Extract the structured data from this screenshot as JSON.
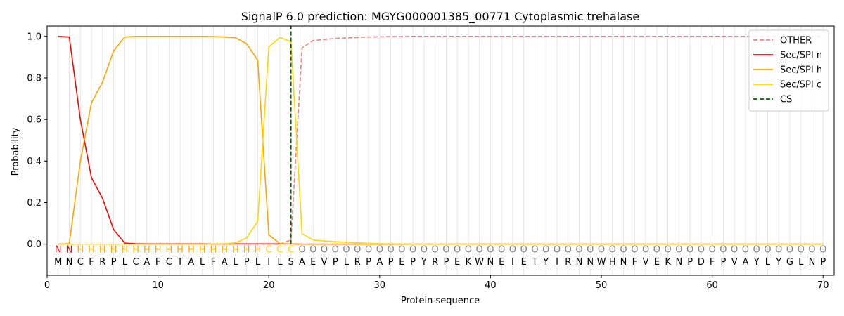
{
  "chart_data": {
    "type": "line",
    "title": "SignalP 6.0 prediction: MGYG000001385_00771 Cytoplasmic trehalase",
    "xlabel": "Protein sequence",
    "ylabel": "Probability",
    "xlim": [
      0,
      71
    ],
    "ylim": [
      -0.15,
      1.05
    ],
    "xticks": [
      0,
      10,
      20,
      30,
      40,
      50,
      60,
      70
    ],
    "yticks": [
      0.0,
      0.2,
      0.4,
      0.6,
      0.8,
      1.0
    ],
    "ytick_labels": [
      "0.0",
      "0.2",
      "0.4",
      "0.6",
      "0.8",
      "1.0"
    ],
    "legend_position": "top-right",
    "grid": "vertical lines at each residue",
    "positions_from": 1,
    "sequence": [
      "M",
      "N",
      "C",
      "F",
      "R",
      "P",
      "L",
      "C",
      "A",
      "F",
      "C",
      "T",
      "A",
      "L",
      "F",
      "A",
      "L",
      "P",
      "L",
      "I",
      "L",
      "S",
      "A",
      "E",
      "V",
      "P",
      "L",
      "R",
      "P",
      "A",
      "P",
      "E",
      "P",
      "Y",
      "R",
      "P",
      "E",
      "K",
      "W",
      "N",
      "E",
      "I",
      "E",
      "T",
      "Y",
      "I",
      "R",
      "N",
      "N",
      "W",
      "H",
      "N",
      "F",
      "V",
      "E",
      "K",
      "N",
      "P",
      "D",
      "F",
      "P",
      "V",
      "A",
      "Y",
      "L",
      "Y",
      "G",
      "L",
      "N",
      "P"
    ],
    "labels": [
      "N",
      "N",
      "H",
      "H",
      "H",
      "H",
      "H",
      "H",
      "H",
      "H",
      "H",
      "H",
      "H",
      "H",
      "H",
      "H",
      "H",
      "H",
      "H",
      "C",
      "C",
      "C",
      "O",
      "O",
      "O",
      "O",
      "O",
      "O",
      "O",
      "O",
      "O",
      "O",
      "O",
      "O",
      "O",
      "O",
      "O",
      "O",
      "O",
      "O",
      "O",
      "O",
      "O",
      "O",
      "O",
      "O",
      "O",
      "O",
      "O",
      "O",
      "O",
      "O",
      "O",
      "O",
      "O",
      "O",
      "O",
      "O",
      "O",
      "O",
      "O",
      "O",
      "O",
      "O",
      "O",
      "O",
      "O",
      "O",
      "O",
      "O"
    ],
    "label_colors": {
      "N": "#ff0000",
      "H": "#ffa500",
      "C": "#ffd700",
      "O": "#808080"
    },
    "series": [
      {
        "name": "OTHER",
        "color": "#f08080",
        "dash": "dashed",
        "values": [
          0,
          0,
          0,
          0,
          0,
          0,
          0,
          0,
          0,
          0,
          0,
          0,
          0,
          0,
          0,
          0,
          0,
          0,
          0,
          0,
          0,
          0.02,
          0.945,
          0.98,
          0.985,
          0.99,
          0.993,
          0.995,
          0.997,
          0.998,
          0.999,
          0.999,
          1,
          1,
          1,
          1,
          1,
          1,
          1,
          1,
          1,
          1,
          1,
          1,
          1,
          1,
          1,
          1,
          1,
          1,
          1,
          1,
          1,
          1,
          1,
          1,
          1,
          1,
          1,
          1,
          1,
          1,
          1,
          1,
          1,
          1,
          1,
          1,
          1,
          1
        ]
      },
      {
        "name": "Sec/SPI n",
        "color": "#ff0000",
        "dash": "solid",
        "values": [
          1.0,
          0.997,
          0.6,
          0.32,
          0.22,
          0.07,
          0.005,
          0.002,
          0.001,
          0.001,
          0.001,
          0.001,
          0.001,
          0.001,
          0.001,
          0.001,
          0.001,
          0.001,
          0.001,
          0.001,
          0.001,
          0.001,
          0,
          0,
          0,
          0,
          0,
          0,
          0,
          0,
          0,
          0,
          0,
          0,
          0,
          0,
          0,
          0,
          0,
          0,
          0,
          0,
          0,
          0,
          0,
          0,
          0,
          0,
          0,
          0,
          0,
          0,
          0,
          0,
          0,
          0,
          0,
          0,
          0,
          0,
          0,
          0,
          0,
          0,
          0,
          0,
          0,
          0,
          0,
          0
        ]
      },
      {
        "name": "Sec/SPI h",
        "color": "#ffa500",
        "dash": "solid",
        "values": [
          0,
          0.003,
          0.4,
          0.68,
          0.78,
          0.93,
          0.997,
          1.0,
          1.0,
          1.0,
          1.0,
          1.0,
          1.0,
          1.0,
          0.999,
          0.997,
          0.993,
          0.965,
          0.885,
          0.045,
          0.003,
          0.001,
          0,
          0,
          0,
          0,
          0,
          0,
          0,
          0,
          0,
          0,
          0,
          0,
          0,
          0,
          0,
          0,
          0,
          0,
          0,
          0,
          0,
          0,
          0,
          0,
          0,
          0,
          0,
          0,
          0,
          0,
          0,
          0,
          0,
          0,
          0,
          0,
          0,
          0,
          0,
          0,
          0,
          0,
          0,
          0,
          0,
          0,
          0,
          0
        ]
      },
      {
        "name": "Sec/SPI c",
        "color": "#ffd700",
        "dash": "solid",
        "values": [
          0,
          0,
          0,
          0,
          0,
          0,
          0,
          0,
          0,
          0,
          0,
          0,
          0,
          0,
          0.001,
          0.002,
          0.006,
          0.03,
          0.11,
          0.95,
          0.995,
          0.975,
          0.05,
          0.02,
          0.015,
          0.012,
          0.009,
          0.006,
          0.004,
          0.002,
          0.001,
          0.001,
          0,
          0,
          0,
          0,
          0,
          0,
          0,
          0,
          0,
          0,
          0,
          0,
          0,
          0,
          0,
          0,
          0,
          0,
          0,
          0,
          0,
          0,
          0,
          0,
          0,
          0,
          0,
          0,
          0,
          0,
          0,
          0,
          0,
          0,
          0,
          0,
          0,
          0
        ]
      }
    ],
    "cs": {
      "name": "CS",
      "x": 22,
      "color": "#006400",
      "dash": "dashed"
    }
  }
}
